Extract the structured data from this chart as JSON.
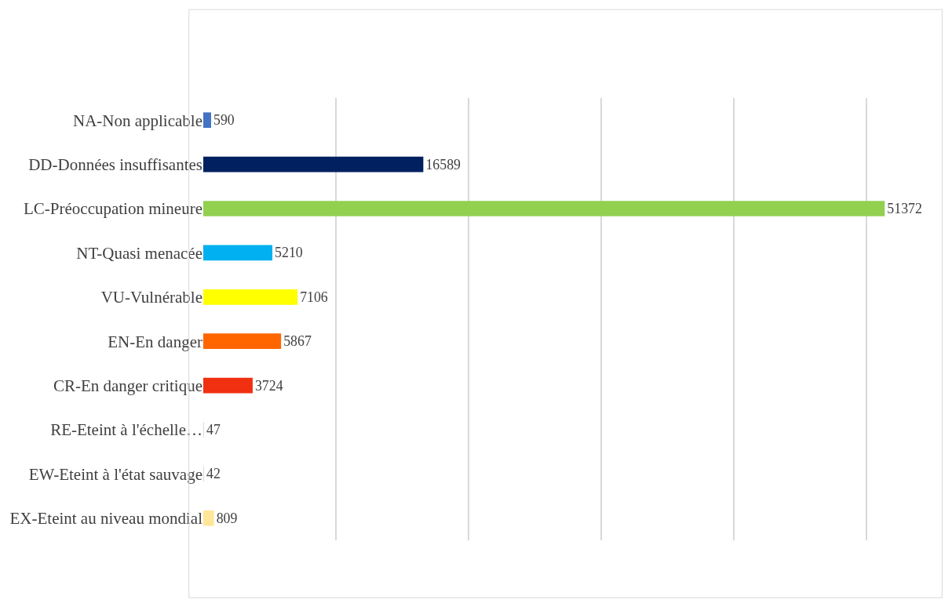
{
  "chart_data": {
    "type": "bar",
    "orientation": "horizontal",
    "categories": [
      "NA-Non applicable",
      "DD-Données insuffisantes",
      "LC-Préoccupation mineure",
      "NT-Quasi menacée",
      "VU-Vulnérable",
      "EN-En danger",
      "CR-En danger critique",
      "RE-Eteint à l'échelle…",
      "EW-Eteint à l'état sauvage",
      "EX-Eteint au niveau mondial"
    ],
    "values": [
      590,
      16589,
      51372,
      5210,
      7106,
      5867,
      3724,
      47,
      42,
      809
    ],
    "colors": [
      "#4472c4",
      "#002060",
      "#92d050",
      "#00b0f0",
      "#ffff00",
      "#ff6600",
      "#f03010",
      "#d9d9d9",
      "#d9d9d9",
      "#ffe699"
    ],
    "data_labels": true,
    "tick_labels": "y",
    "grid": "x"
  }
}
